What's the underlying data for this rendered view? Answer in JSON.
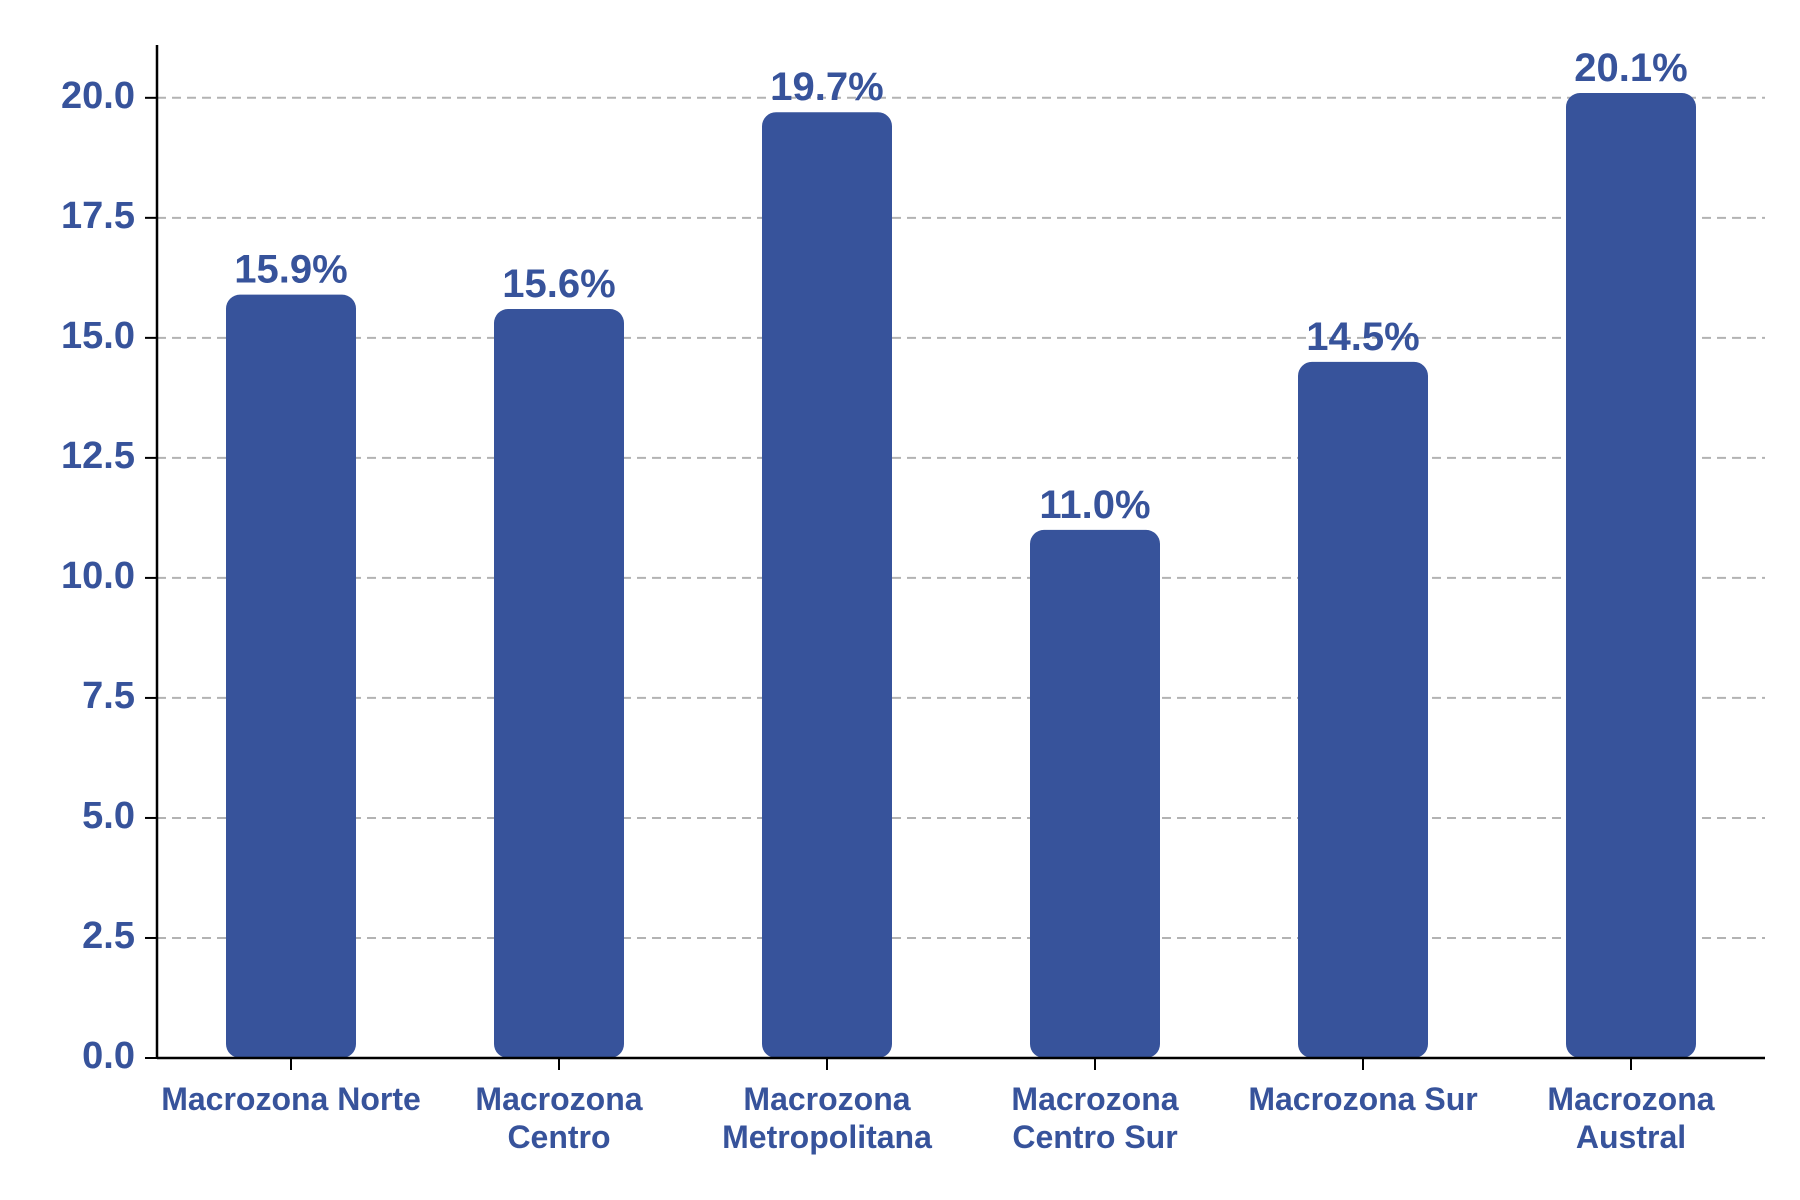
{
  "chart_data": {
    "type": "bar",
    "categories": [
      [
        "Macrozona Norte"
      ],
      [
        "Macrozona",
        "Centro"
      ],
      [
        "Macrozona",
        "Metropolitana"
      ],
      [
        "Macrozona",
        "Centro Sur"
      ],
      [
        "Macrozona Sur"
      ],
      [
        "Macrozona",
        "Austral"
      ]
    ],
    "values": [
      15.9,
      15.6,
      19.7,
      11.0,
      14.5,
      20.1
    ],
    "data_labels": [
      "15.9%",
      "15.6%",
      "19.7%",
      "11.0%",
      "14.5%",
      "20.1%"
    ],
    "yticks": [
      "0.0",
      "2.5",
      "5.0",
      "7.5",
      "10.0",
      "12.5",
      "15.0",
      "17.5",
      "20.0"
    ],
    "ylim": [
      0,
      21.1
    ],
    "title": "",
    "xlabel": "",
    "ylabel": "",
    "grid": "horizontal dashed",
    "legend": "none",
    "colors": {
      "bar": "#37539b",
      "text": "#37539b",
      "axis": "#000000",
      "grid": "#b3b3b3"
    }
  }
}
